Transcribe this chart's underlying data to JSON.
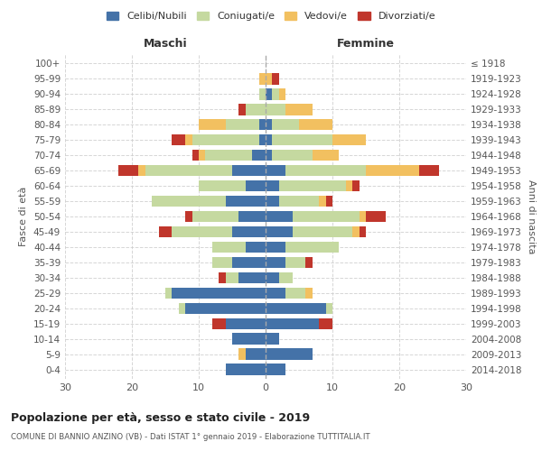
{
  "age_groups": [
    "100+",
    "95-99",
    "90-94",
    "85-89",
    "80-84",
    "75-79",
    "70-74",
    "65-69",
    "60-64",
    "55-59",
    "50-54",
    "45-49",
    "40-44",
    "35-39",
    "30-34",
    "25-29",
    "20-24",
    "15-19",
    "10-14",
    "5-9",
    "0-4"
  ],
  "birth_years": [
    "≤ 1918",
    "1919-1923",
    "1924-1928",
    "1929-1933",
    "1934-1938",
    "1939-1943",
    "1944-1948",
    "1949-1953",
    "1954-1958",
    "1959-1963",
    "1964-1968",
    "1969-1973",
    "1974-1978",
    "1979-1983",
    "1984-1988",
    "1989-1993",
    "1994-1998",
    "1999-2003",
    "2004-2008",
    "2009-2013",
    "2014-2018"
  ],
  "males": {
    "celibi": [
      0,
      0,
      0,
      0,
      1,
      1,
      2,
      5,
      3,
      6,
      4,
      5,
      3,
      5,
      4,
      14,
      12,
      6,
      5,
      3,
      6
    ],
    "coniugati": [
      0,
      0,
      1,
      3,
      5,
      10,
      7,
      13,
      7,
      11,
      7,
      9,
      5,
      3,
      2,
      1,
      1,
      0,
      0,
      0,
      0
    ],
    "vedovi": [
      0,
      1,
      0,
      0,
      4,
      1,
      1,
      1,
      0,
      0,
      0,
      0,
      0,
      0,
      0,
      0,
      0,
      0,
      0,
      1,
      0
    ],
    "divorziati": [
      0,
      0,
      0,
      1,
      0,
      2,
      1,
      3,
      0,
      0,
      1,
      2,
      0,
      0,
      1,
      0,
      0,
      2,
      0,
      0,
      0
    ]
  },
  "females": {
    "nubili": [
      0,
      0,
      1,
      0,
      1,
      1,
      1,
      3,
      2,
      2,
      4,
      4,
      3,
      3,
      2,
      3,
      9,
      8,
      2,
      7,
      3
    ],
    "coniugate": [
      0,
      0,
      1,
      3,
      4,
      9,
      6,
      12,
      10,
      6,
      10,
      9,
      8,
      3,
      2,
      3,
      1,
      0,
      0,
      0,
      0
    ],
    "vedove": [
      0,
      1,
      1,
      4,
      5,
      5,
      4,
      8,
      1,
      1,
      1,
      1,
      0,
      0,
      0,
      1,
      0,
      0,
      0,
      0,
      0
    ],
    "divorziate": [
      0,
      1,
      0,
      0,
      0,
      0,
      0,
      3,
      1,
      1,
      3,
      1,
      0,
      1,
      0,
      0,
      0,
      2,
      0,
      0,
      0
    ]
  },
  "colors": {
    "celibi": "#4472a8",
    "coniugati": "#c5d9a0",
    "vedovi": "#f2c060",
    "divorziati": "#c0362c"
  },
  "title": "Popolazione per età, sesso e stato civile - 2019",
  "subtitle": "COMUNE DI BANNIO ANZINO (VB) - Dati ISTAT 1° gennaio 2019 - Elaborazione TUTTITALIA.IT",
  "xlabel_left": "Maschi",
  "xlabel_right": "Femmine",
  "ylabel_left": "Fasce di età",
  "ylabel_right": "Anni di nascita",
  "xlim": 30,
  "legend_labels": [
    "Celibi/Nubili",
    "Coniugati/e",
    "Vedovi/e",
    "Divorziati/e"
  ],
  "background_color": "#ffffff",
  "grid_color": "#cccccc"
}
